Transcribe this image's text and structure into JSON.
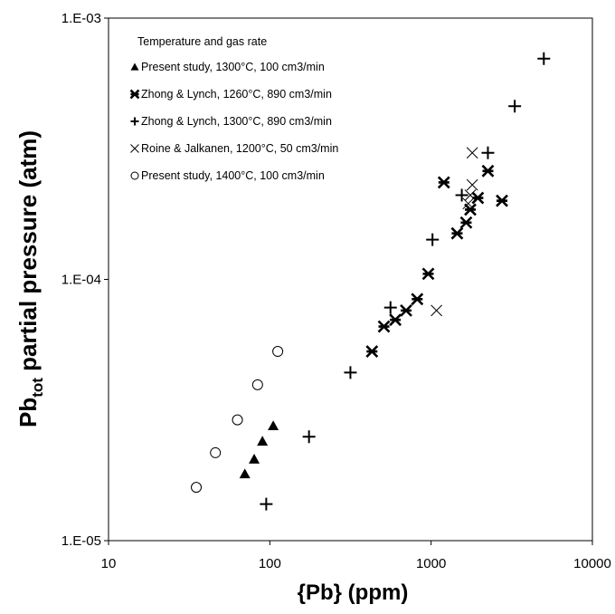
{
  "chart_data": {
    "type": "scatter",
    "x_label": "{Pb} (ppm)",
    "y_label": {
      "main": "Pb",
      "sub": "tot",
      "rest": " partial pressure (atm)"
    },
    "legend_title": "Temperature and gas rate",
    "xscale": "log",
    "yscale": "log",
    "xlim": [
      10,
      10000
    ],
    "ylim": [
      1e-05,
      0.001
    ],
    "xticks": [
      10,
      100,
      1000,
      10000
    ],
    "yticks": [
      {
        "value": 1e-05,
        "label": "1.E-05"
      },
      {
        "value": 0.0001,
        "label": "1.E-04"
      },
      {
        "value": 0.001,
        "label": "1.E-03"
      }
    ],
    "legend": "upper left",
    "series": [
      {
        "name": "Present study, 1300°C,  100 cm3/min",
        "marker": "triangle",
        "color": "#000000",
        "x": [
          70,
          80,
          90,
          105
        ],
        "values": [
          1.8e-05,
          2.05e-05,
          2.4e-05,
          2.75e-05
        ]
      },
      {
        "name": "Zhong & Lynch, 1260°C,  890 cm3/min",
        "marker": "asterisk",
        "color": "#000000",
        "x": [
          430,
          510,
          600,
          700,
          820,
          960,
          1200,
          1450,
          1650,
          1750,
          1950,
          2250,
          2750
        ],
        "values": [
          5.3e-05,
          6.6e-05,
          7e-05,
          7.6e-05,
          8.4e-05,
          0.000105,
          0.000235,
          0.00015,
          0.000165,
          0.000185,
          0.000205,
          0.00026,
          0.0002
        ]
      },
      {
        "name": "Zhong & Lynch, 1300°C,  890 cm3/min",
        "marker": "plus",
        "color": "#000000",
        "x": [
          95,
          175,
          316,
          560,
          1020,
          1550,
          2250,
          3300,
          5000
        ],
        "values": [
          1.38e-05,
          2.5e-05,
          4.4e-05,
          7.8e-05,
          0.000142,
          0.00021,
          0.000305,
          0.00046,
          0.0007
        ]
      },
      {
        "name": "Roine & Jalkanen, 1200°C,  50 cm3/min",
        "marker": "cross",
        "color": "#000000",
        "x": [
          1080,
          1700,
          1750,
          1800,
          1800
        ],
        "values": [
          7.6e-05,
          0.000195,
          0.00021,
          0.00023,
          0.000305
        ]
      },
      {
        "name": "Present study, 1400°C,  100 cm3/min",
        "marker": "circle",
        "color": "#000000",
        "x": [
          35,
          46,
          63,
          84,
          112
        ],
        "values": [
          1.6e-05,
          2.17e-05,
          2.9e-05,
          3.95e-05,
          5.3e-05
        ]
      }
    ]
  }
}
